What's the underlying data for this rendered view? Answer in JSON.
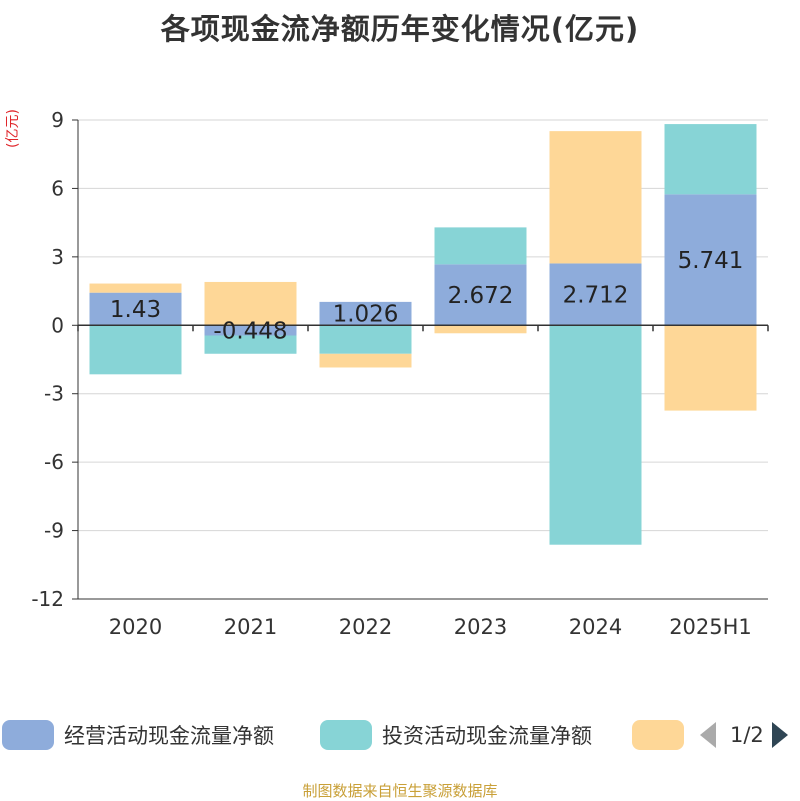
{
  "title": "各项现金流净额历年变化情况(亿元)",
  "unit_label": "(亿元)",
  "footer": "制图数据来自恒生聚源数据库",
  "legend": {
    "items": [
      {
        "label": "经营活动现金流量净额",
        "color": "#8eacdb"
      },
      {
        "label": "投资活动现金流量净额",
        "color": "#87d4d6"
      },
      {
        "label": "",
        "color": "#fed797"
      }
    ],
    "page": "1/2"
  },
  "chart_data": {
    "type": "bar",
    "stacked": true,
    "categories": [
      "2020",
      "2021",
      "2022",
      "2023",
      "2024",
      "2025H1"
    ],
    "series": [
      {
        "name": "经营活动现金流量净额",
        "color": "#8eacdb",
        "values": [
          1.43,
          -0.448,
          1.026,
          2.672,
          2.712,
          5.741
        ]
      },
      {
        "name": "投资活动现金流量净额",
        "color": "#87d4d6",
        "values": [
          -2.15,
          -0.8,
          -1.25,
          1.62,
          -9.62,
          3.08
        ]
      },
      {
        "name": "",
        "color": "#fed797",
        "values": [
          0.4,
          1.9,
          -0.6,
          -0.35,
          5.8,
          -3.74
        ]
      }
    ],
    "data_labels": [
      "1.43",
      "-0.448",
      "1.026",
      "2.672",
      "2.712",
      "5.741"
    ],
    "yticks": [
      "9",
      "6",
      "3",
      "0",
      "-3",
      "-6",
      "-9",
      "-12"
    ],
    "ylim": [
      -12,
      9
    ],
    "grid": true
  }
}
